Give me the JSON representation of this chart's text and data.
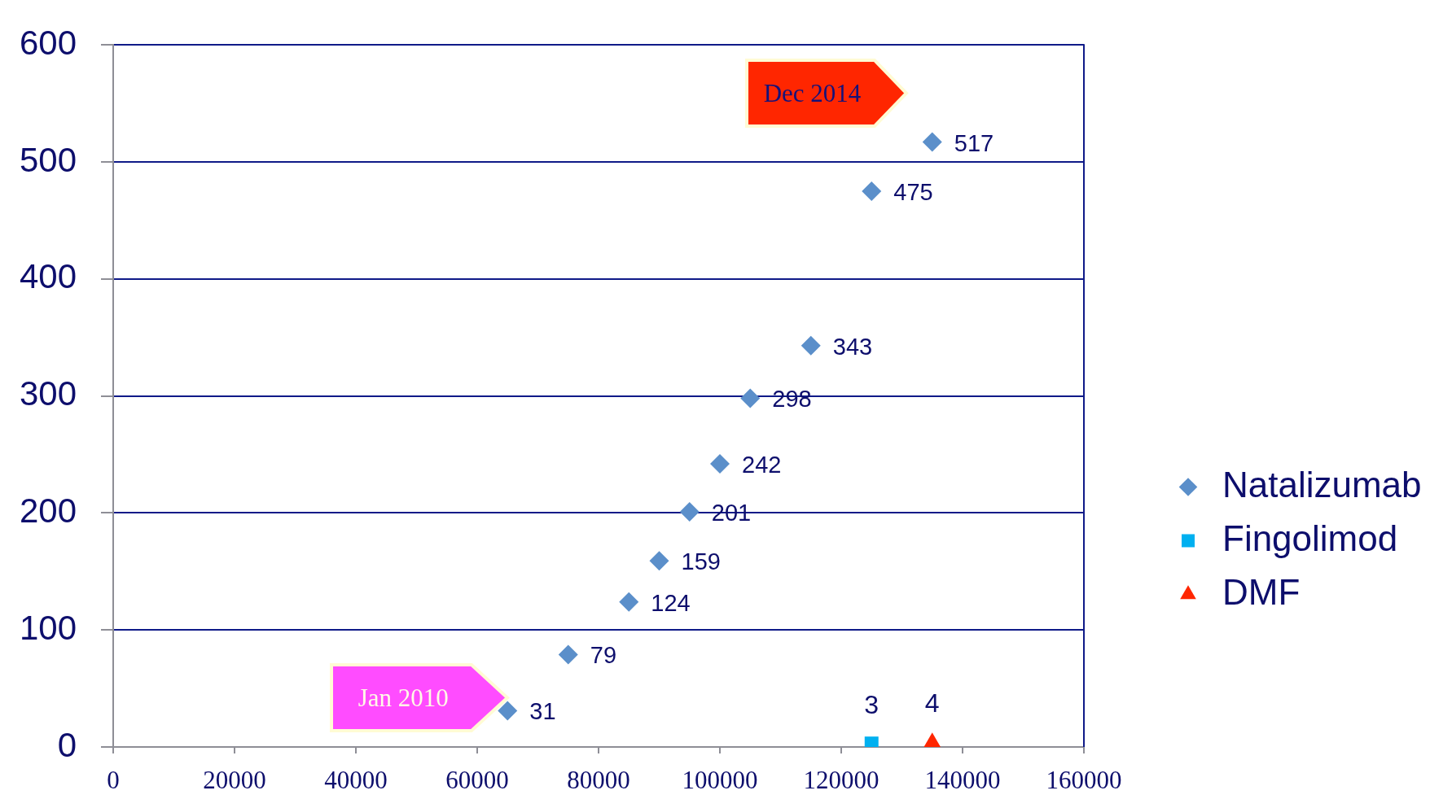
{
  "chart_data": {
    "type": "scatter",
    "xlim": [
      0,
      160000
    ],
    "xticks": [
      0,
      20000,
      40000,
      60000,
      80000,
      100000,
      120000,
      140000,
      160000
    ],
    "ylim": [
      0,
      600
    ],
    "yticks": [
      0,
      100,
      200,
      300,
      400,
      500,
      600
    ],
    "grid": "y",
    "legend": "right",
    "data_labels": true,
    "series": [
      {
        "name": "Natalizumab",
        "color": "#5b8fca",
        "marker": "diamond",
        "x": [
          65000,
          75000,
          85000,
          90000,
          95000,
          100000,
          105000,
          115000,
          125000,
          135000
        ],
        "values": [
          31,
          79,
          124,
          159,
          201,
          242,
          298,
          343,
          475,
          517
        ]
      },
      {
        "name": "Fingolimod",
        "color": "#00b0f0",
        "marker": "square",
        "x": [
          125000
        ],
        "values": [
          3
        ]
      },
      {
        "name": "DMF",
        "color": "#ff2600",
        "marker": "triangle",
        "x": [
          135000
        ],
        "values": [
          4
        ]
      }
    ],
    "annotations": [
      {
        "text": "Jan 2010",
        "x": 65000,
        "y": 31
      },
      "Dec 2014"
    ]
  }
}
